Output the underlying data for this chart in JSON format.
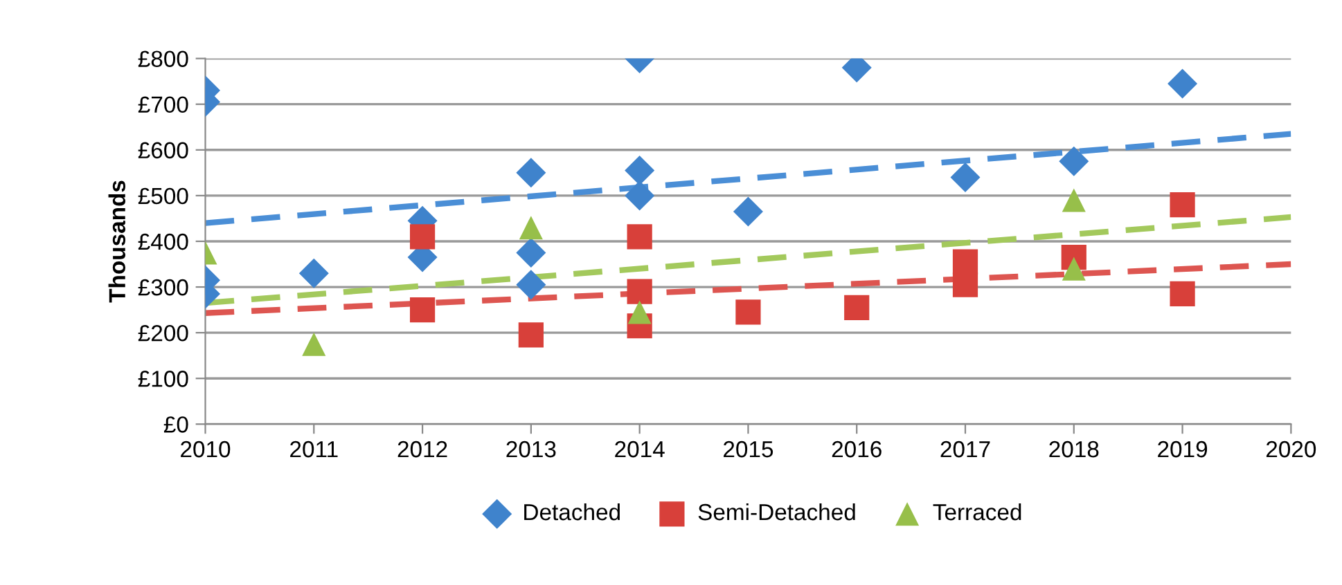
{
  "chart_data": {
    "type": "scatter",
    "ylabel": "Thousands",
    "xlim": [
      2010,
      2020
    ],
    "xticks": [
      2010,
      2011,
      2012,
      2013,
      2014,
      2015,
      2016,
      2017,
      2018,
      2019,
      2020
    ],
    "ylim": [
      0,
      800
    ],
    "yticks": [
      {
        "value": 0,
        "label": "£0"
      },
      {
        "value": 100,
        "label": "£100"
      },
      {
        "value": 200,
        "label": "£200"
      },
      {
        "value": 300,
        "label": "£300"
      },
      {
        "value": 400,
        "label": "£400"
      },
      {
        "value": 500,
        "label": "£500"
      },
      {
        "value": 600,
        "label": "£600"
      },
      {
        "value": 700,
        "label": "£700"
      },
      {
        "value": 800,
        "label": "£800"
      }
    ],
    "grid": "y",
    "legend": "bottom",
    "series": [
      {
        "name": "Detached",
        "color": "#3f83cc",
        "marker": "diamond",
        "x": [
          2010,
          2010,
          2010,
          2010,
          2011,
          2012,
          2012,
          2013,
          2013,
          2013,
          2014,
          2014,
          2014,
          2015,
          2016,
          2017,
          2018,
          2019
        ],
        "values": [
          730,
          705,
          315,
          285,
          330,
          445,
          365,
          550,
          375,
          305,
          800,
          555,
          500,
          465,
          780,
          540,
          575,
          745
        ]
      },
      {
        "name": "Semi-Detached",
        "color": "#d8403a",
        "marker": "square",
        "x": [
          2012,
          2012,
          2013,
          2014,
          2014,
          2014,
          2015,
          2016,
          2017,
          2017,
          2018,
          2019,
          2019
        ],
        "values": [
          410,
          250,
          195,
          410,
          290,
          215,
          245,
          255,
          355,
          305,
          365,
          480,
          285
        ]
      },
      {
        "name": "Terraced",
        "color": "#97bf4a",
        "marker": "triangle",
        "x": [
          2010,
          2011,
          2013,
          2014,
          2018,
          2018
        ],
        "values": [
          375,
          175,
          430,
          245,
          490,
          340
        ]
      },
      {
        "type": "line",
        "color": "#4a8ed6",
        "line_style": "dashed",
        "x": [
          2010,
          2020
        ],
        "values": [
          440,
          635
        ]
      },
      {
        "type": "line",
        "color": "#dd5550",
        "line_style": "dashed",
        "x": [
          2010,
          2020
        ],
        "values": [
          243,
          350
        ]
      },
      {
        "type": "line",
        "color": "#a3c95c",
        "line_style": "dashed",
        "x": [
          2010,
          2020
        ],
        "values": [
          265,
          453
        ]
      }
    ]
  }
}
